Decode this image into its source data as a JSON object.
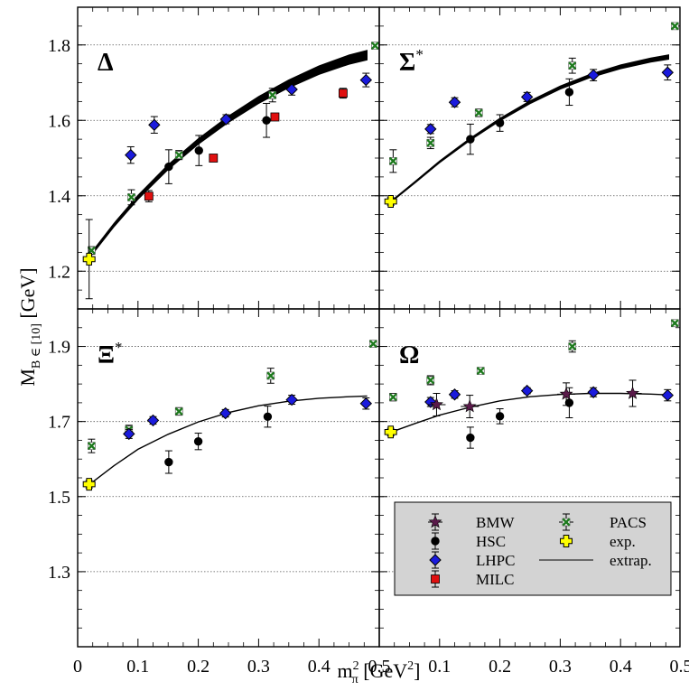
{
  "chart_data": {
    "type": "scatter",
    "xlabel": "m²π [GeV²]",
    "ylabel": "MB ∈ [10] [GeV]",
    "x_ticks": [
      "0",
      "0.1",
      "0.2",
      "0.3",
      "0.4",
      "0.5"
    ],
    "xlim": [
      0,
      0.5
    ],
    "grid": "horizontal dotted",
    "legend": {
      "placement": "bottom-right panel",
      "entries": [
        {
          "label": "BMW",
          "marker": "star",
          "color": "#5a1a4a"
        },
        {
          "label": "HSC",
          "marker": "circle",
          "color": "#000000"
        },
        {
          "label": "LHPC",
          "marker": "diamond",
          "color": "#1a1add"
        },
        {
          "label": "MILC",
          "marker": "square",
          "color": "#e01010"
        },
        {
          "label": "PACS",
          "marker": "x",
          "color": "#1e7a1e"
        },
        {
          "label": "exp.",
          "marker": "plus",
          "color": "#ffff00"
        },
        {
          "label": "extrap.",
          "marker": "line",
          "color": "#000000"
        }
      ]
    },
    "panels": [
      {
        "name": "Δ",
        "sup": "",
        "ylim": [
          1.1,
          1.9
        ],
        "yticks": [
          "1.2",
          "1.4",
          "1.6",
          "1.8"
        ],
        "extrap": {
          "x": [
            0.02,
            0.06,
            0.1,
            0.15,
            0.2,
            0.25,
            0.3,
            0.35,
            0.4,
            0.45,
            0.48
          ],
          "y": [
            1.24,
            1.322,
            1.396,
            1.476,
            1.544,
            1.603,
            1.654,
            1.697,
            1.733,
            1.761,
            1.773
          ],
          "band": 0.013
        },
        "exp": [
          {
            "x": 0.019,
            "y": 1.232,
            "err": 0.105
          }
        ],
        "series": {
          "PACS": [
            {
              "x": 0.023,
              "y": 1.255,
              "err": 0.01
            },
            {
              "x": 0.089,
              "y": 1.396,
              "err": 0.02
            },
            {
              "x": 0.168,
              "y": 1.508,
              "err": 0.012
            },
            {
              "x": 0.323,
              "y": 1.667,
              "err": 0.018
            },
            {
              "x": 0.493,
              "y": 1.798,
              "err": 0.008
            }
          ],
          "HSC": [
            {
              "x": 0.151,
              "y": 1.477,
              "err": 0.045
            },
            {
              "x": 0.201,
              "y": 1.52,
              "err": 0.04
            },
            {
              "x": 0.313,
              "y": 1.6,
              "err": 0.045
            }
          ],
          "LHPC": [
            {
              "x": 0.088,
              "y": 1.508,
              "err": 0.022
            },
            {
              "x": 0.127,
              "y": 1.588,
              "err": 0.022
            },
            {
              "x": 0.246,
              "y": 1.603,
              "err": 0.012
            },
            {
              "x": 0.355,
              "y": 1.682,
              "err": 0.015
            },
            {
              "x": 0.478,
              "y": 1.707,
              "err": 0.018
            }
          ],
          "MILC": [
            {
              "x": 0.118,
              "y": 1.399,
              "err": 0.015
            },
            {
              "x": 0.225,
              "y": 1.5,
              "err": 0.007
            },
            {
              "x": 0.327,
              "y": 1.609,
              "err": 0.006
            },
            {
              "x": 0.44,
              "y": 1.672,
              "err": 0.013
            }
          ],
          "BMW": []
        }
      },
      {
        "name": "Σ",
        "sup": "*",
        "ylim": [
          1.1,
          1.9
        ],
        "yticks": [
          "1.2",
          "1.4",
          "1.6",
          "1.8"
        ],
        "extrap": {
          "x": [
            0.02,
            0.06,
            0.1,
            0.15,
            0.2,
            0.25,
            0.3,
            0.35,
            0.4,
            0.45,
            0.48
          ],
          "y": [
            1.385,
            1.437,
            1.49,
            1.549,
            1.602,
            1.648,
            1.687,
            1.718,
            1.742,
            1.76,
            1.768
          ],
          "band": 0.006
        },
        "exp": [
          {
            "x": 0.019,
            "y": 1.385,
            "err": 0.01
          }
        ],
        "series": {
          "PACS": [
            {
              "x": 0.023,
              "y": 1.492,
              "err": 0.03
            },
            {
              "x": 0.085,
              "y": 1.54,
              "err": 0.015
            },
            {
              "x": 0.165,
              "y": 1.62,
              "err": 0.01
            },
            {
              "x": 0.32,
              "y": 1.745,
              "err": 0.02
            },
            {
              "x": 0.49,
              "y": 1.85,
              "err": 0.008
            }
          ],
          "HSC": [
            {
              "x": 0.151,
              "y": 1.55,
              "err": 0.04
            },
            {
              "x": 0.2,
              "y": 1.593,
              "err": 0.022
            },
            {
              "x": 0.315,
              "y": 1.675,
              "err": 0.035
            }
          ],
          "LHPC": [
            {
              "x": 0.085,
              "y": 1.577,
              "err": 0.012
            },
            {
              "x": 0.125,
              "y": 1.648,
              "err": 0.012
            },
            {
              "x": 0.245,
              "y": 1.662,
              "err": 0.012
            },
            {
              "x": 0.355,
              "y": 1.72,
              "err": 0.015
            },
            {
              "x": 0.478,
              "y": 1.727,
              "err": 0.02
            }
          ],
          "MILC": [],
          "BMW": []
        }
      },
      {
        "name": "Ξ",
        "sup": "*",
        "ylim": [
          1.1,
          2.0
        ],
        "yticks": [
          "1.3",
          "1.5",
          "1.7",
          "1.9"
        ],
        "extrap": {
          "x": [
            0.02,
            0.06,
            0.1,
            0.15,
            0.2,
            0.25,
            0.3,
            0.35,
            0.4,
            0.45,
            0.48
          ],
          "y": [
            1.533,
            1.582,
            1.626,
            1.666,
            1.699,
            1.724,
            1.742,
            1.754,
            1.762,
            1.766,
            1.768
          ],
          "band": 0.003
        },
        "exp": [
          {
            "x": 0.019,
            "y": 1.533,
            "err": 0.01
          }
        ],
        "series": {
          "PACS": [
            {
              "x": 0.023,
              "y": 1.635,
              "err": 0.018
            },
            {
              "x": 0.085,
              "y": 1.678,
              "err": 0.012
            },
            {
              "x": 0.168,
              "y": 1.727,
              "err": 0.01
            },
            {
              "x": 0.32,
              "y": 1.822,
              "err": 0.02
            },
            {
              "x": 0.49,
              "y": 1.907,
              "err": 0.008
            }
          ],
          "HSC": [
            {
              "x": 0.151,
              "y": 1.592,
              "err": 0.03
            },
            {
              "x": 0.2,
              "y": 1.647,
              "err": 0.022
            },
            {
              "x": 0.315,
              "y": 1.713,
              "err": 0.028
            }
          ],
          "LHPC": [
            {
              "x": 0.085,
              "y": 1.667,
              "err": 0.012
            },
            {
              "x": 0.125,
              "y": 1.703,
              "err": 0.01
            },
            {
              "x": 0.245,
              "y": 1.722,
              "err": 0.01
            },
            {
              "x": 0.355,
              "y": 1.758,
              "err": 0.012
            },
            {
              "x": 0.478,
              "y": 1.748,
              "err": 0.015
            }
          ],
          "MILC": [],
          "BMW": []
        }
      },
      {
        "name": "Ω",
        "sup": "",
        "ylim": [
          1.1,
          2.0
        ],
        "yticks": [
          "1.3",
          "1.5",
          "1.7",
          "1.9"
        ],
        "extrap": {
          "x": [
            0.02,
            0.06,
            0.1,
            0.15,
            0.2,
            0.25,
            0.3,
            0.35,
            0.4,
            0.45,
            0.48
          ],
          "y": [
            1.672,
            1.695,
            1.717,
            1.738,
            1.755,
            1.766,
            1.772,
            1.775,
            1.775,
            1.773,
            1.771
          ],
          "band": 0.003
        },
        "exp": [
          {
            "x": 0.019,
            "y": 1.672,
            "err": 0.01
          }
        ],
        "series": {
          "PACS": [
            {
              "x": 0.023,
              "y": 1.765,
              "err": 0.01
            },
            {
              "x": 0.085,
              "y": 1.81,
              "err": 0.012
            },
            {
              "x": 0.168,
              "y": 1.835,
              "err": 0.008
            },
            {
              "x": 0.32,
              "y": 1.9,
              "err": 0.015
            },
            {
              "x": 0.49,
              "y": 1.962,
              "err": 0.008
            }
          ],
          "HSC": [
            {
              "x": 0.151,
              "y": 1.657,
              "err": 0.028
            },
            {
              "x": 0.2,
              "y": 1.714,
              "err": 0.02
            },
            {
              "x": 0.315,
              "y": 1.75,
              "err": 0.04
            }
          ],
          "LHPC": [
            {
              "x": 0.085,
              "y": 1.752,
              "err": 0.012
            },
            {
              "x": 0.125,
              "y": 1.772,
              "err": 0.01
            },
            {
              "x": 0.245,
              "y": 1.782,
              "err": 0.008
            },
            {
              "x": 0.355,
              "y": 1.778,
              "err": 0.012
            },
            {
              "x": 0.478,
              "y": 1.77,
              "err": 0.015
            }
          ],
          "MILC": [],
          "BMW": [
            {
              "x": 0.095,
              "y": 1.745,
              "err": 0.03
            },
            {
              "x": 0.15,
              "y": 1.74,
              "err": 0.03
            },
            {
              "x": 0.31,
              "y": 1.773,
              "err": 0.03
            },
            {
              "x": 0.42,
              "y": 1.775,
              "err": 0.035
            }
          ]
        }
      }
    ]
  }
}
